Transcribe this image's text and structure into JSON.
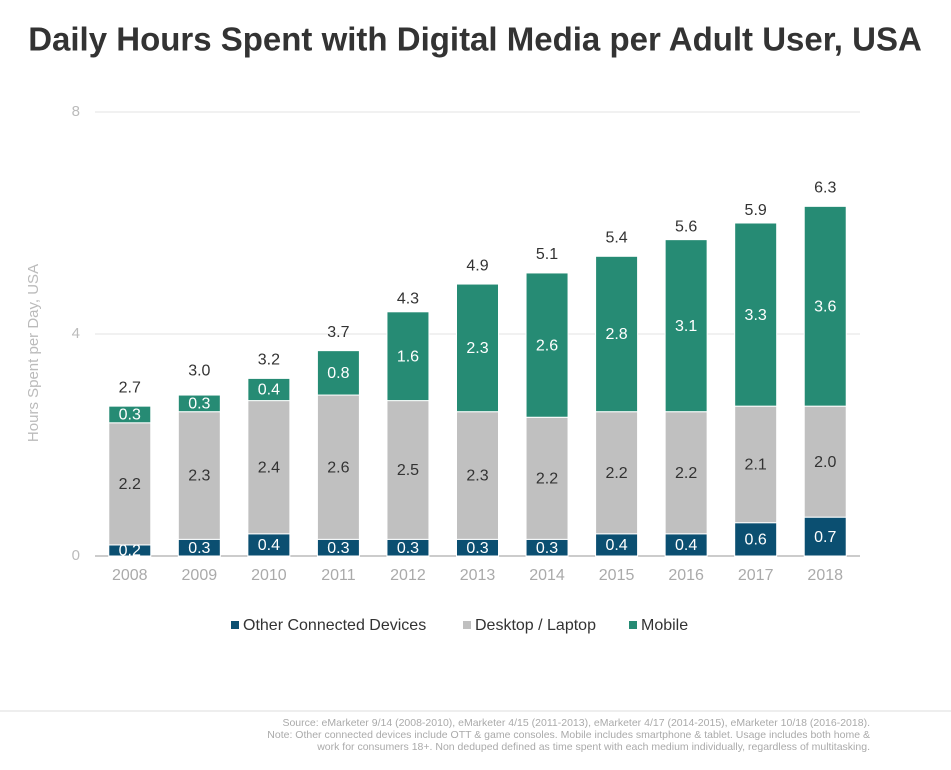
{
  "chart_data": {
    "type": "stacked_bar",
    "title": "Daily Hours Spent with Digital Media per Adult User, USA",
    "y_label": "Hours Spent per Day, USA",
    "categories": [
      "2008",
      "2009",
      "2010",
      "2011",
      "2012",
      "2013",
      "2014",
      "2015",
      "2016",
      "2017",
      "2018"
    ],
    "series": [
      {
        "name": "Other Connected Devices",
        "color": "#0b4f71",
        "values": [
          0.2,
          0.3,
          0.4,
          0.3,
          0.3,
          0.3,
          0.3,
          0.4,
          0.4,
          0.6,
          0.7
        ]
      },
      {
        "name": "Desktop / Laptop",
        "color": "#c0c0c0",
        "values": [
          2.2,
          2.3,
          2.4,
          2.6,
          2.5,
          2.3,
          2.2,
          2.2,
          2.2,
          2.1,
          2.0
        ],
        "value_labels": [
          "2.2",
          "2.3",
          "2.4",
          "2.6",
          "2.5",
          "2.3",
          "2.2",
          "2.2",
          "2.2",
          "2.1",
          "2.0"
        ]
      },
      {
        "name": "Mobile",
        "color": "#268b74",
        "values": [
          0.3,
          0.3,
          0.4,
          0.8,
          1.6,
          2.3,
          2.6,
          2.8,
          3.1,
          3.3,
          3.6
        ]
      }
    ],
    "totals": [
      2.7,
      3.0,
      3.2,
      3.7,
      4.3,
      4.9,
      5.1,
      5.4,
      5.6,
      5.9,
      6.3
    ],
    "totals_labels": [
      "2.7",
      "3.0",
      "3.2",
      "3.7",
      "4.3",
      "4.9",
      "5.1",
      "5.4",
      "5.6",
      "5.9",
      "6.3"
    ],
    "ylim": [
      0,
      8
    ],
    "yticks": [
      0,
      4,
      8
    ],
    "grid": true,
    "notes": [
      "Source: eMarketer 9/14 (2008-2010), eMarketer 4/15 (2011-2013), eMarketer 4/17 (2014-2015), eMarketer 10/18 (2016-2018).",
      "Note: Other connected devices include OTT & game consoles. Mobile includes smartphone & tablet. Usage includes both home &",
      "work for consumers 18+. Non deduped defined as time spent with each medium individually, regardless of multitasking."
    ]
  }
}
